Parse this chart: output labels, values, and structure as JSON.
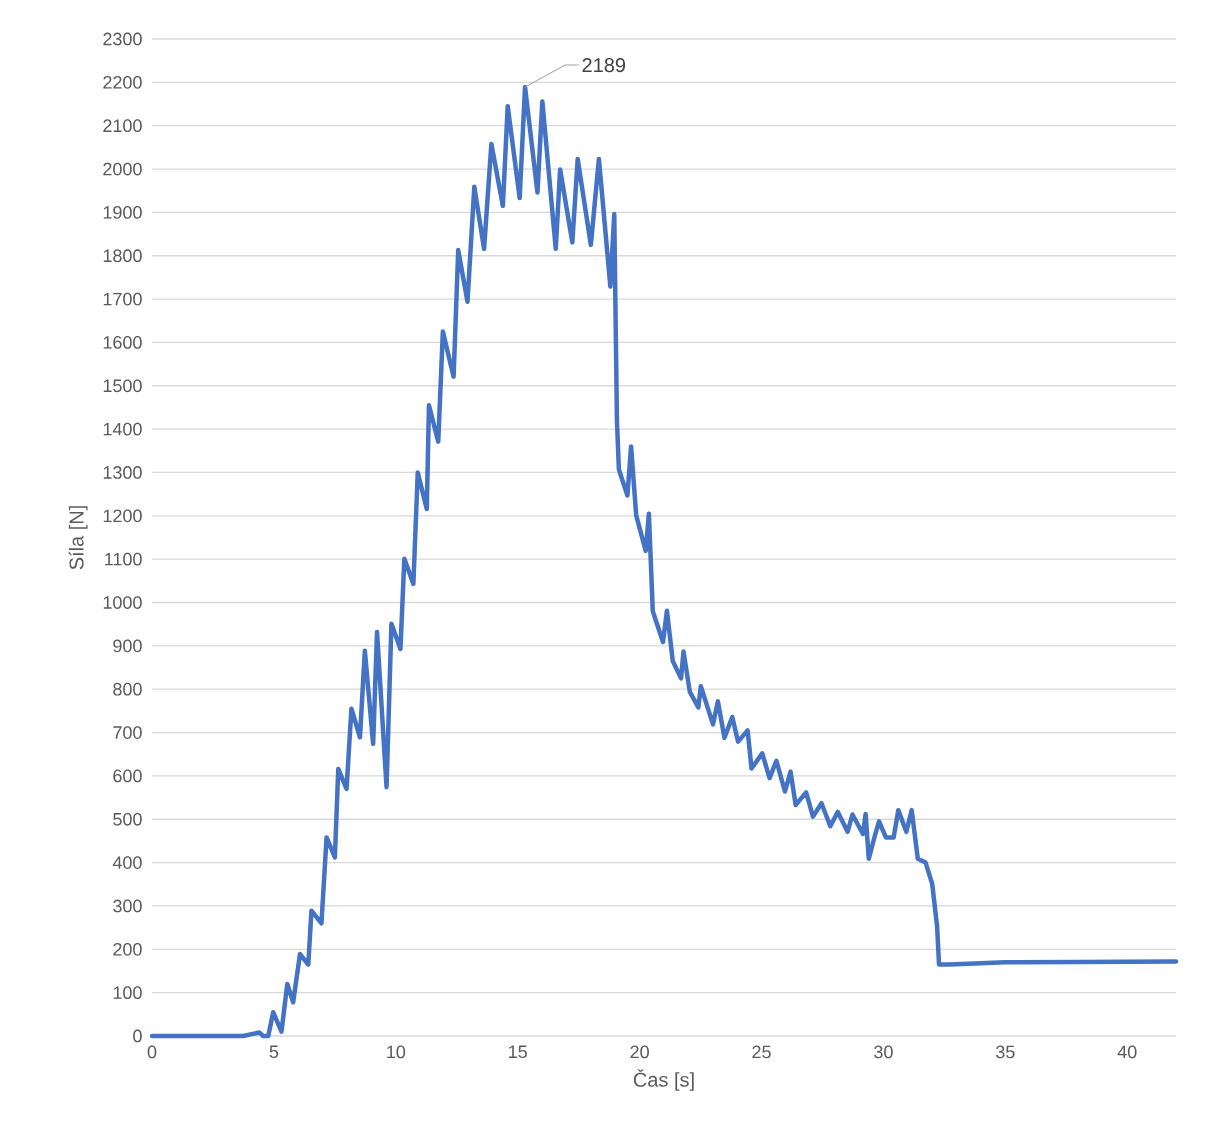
{
  "chart_data": {
    "type": "line",
    "xlabel": "Čas [s]",
    "ylabel": "Síla [N]",
    "color": "#4472c4",
    "grid": "y",
    "xlim": [
      0,
      42
    ],
    "ylim": [
      0,
      2300
    ],
    "xticks": [
      0,
      5,
      10,
      15,
      20,
      25,
      30,
      35,
      40
    ],
    "yticks": [
      0,
      100,
      200,
      300,
      400,
      500,
      600,
      700,
      800,
      900,
      1000,
      1100,
      1200,
      1300,
      1400,
      1500,
      1600,
      1700,
      1800,
      1900,
      2000,
      2100,
      2200,
      2300
    ],
    "annotations": [
      {
        "text": "2189",
        "x": 15.3,
        "y": 2189
      }
    ],
    "x": [
      0,
      2,
      3.74,
      4.4,
      4.56,
      4.77,
      4.97,
      5.31,
      5.55,
      5.79,
      6.07,
      6.41,
      6.54,
      6.95,
      7.16,
      7.5,
      7.64,
      7.98,
      8.18,
      8.53,
      8.73,
      9.07,
      9.23,
      9.62,
      9.82,
      10.19,
      10.35,
      10.72,
      10.9,
      11.27,
      11.36,
      11.74,
      11.93,
      12.37,
      12.56,
      12.94,
      13.22,
      13.62,
      13.92,
      14.39,
      14.59,
      15.08,
      15.3,
      15.81,
      16.01,
      16.56,
      16.74,
      17.24,
      17.46,
      18.0,
      18.33,
      18.8,
      18.96,
      19.07,
      19.15,
      19.5,
      19.65,
      19.86,
      20.25,
      20.38,
      20.54,
      20.96,
      21.12,
      21.36,
      21.7,
      21.8,
      22.06,
      22.41,
      22.51,
      23.01,
      23.21,
      23.48,
      23.8,
      24.04,
      24.43,
      24.59,
      25.03,
      25.33,
      25.61,
      25.96,
      26.19,
      26.4,
      26.83,
      27.11,
      27.46,
      27.82,
      28.13,
      28.53,
      28.73,
      29.16,
      29.27,
      29.4,
      29.63,
      29.82,
      30.1,
      30.42,
      30.61,
      30.94,
      31.16,
      31.41,
      31.73,
      32.0,
      32.2,
      32.28,
      32.71,
      35,
      38,
      42
    ],
    "values": [
      0,
      0,
      0,
      8,
      0,
      0,
      55,
      10,
      120,
      78,
      189,
      165,
      289,
      260,
      458,
      412,
      616,
      570,
      755,
      689,
      889,
      674,
      932,
      574,
      951,
      893,
      1101,
      1043,
      1300,
      1216,
      1455,
      1371,
      1625,
      1521,
      1813,
      1694,
      1959,
      1816,
      2058,
      1915,
      2145,
      1933,
      2189,
      1946,
      2156,
      1816,
      1999,
      1831,
      2023,
      1825,
      2023,
      1729,
      1896,
      1419,
      1307,
      1247,
      1360,
      1201,
      1119,
      1205,
      980,
      909,
      981,
      865,
      825,
      887,
      794,
      758,
      807,
      719,
      772,
      688,
      736,
      679,
      705,
      617,
      652,
      595,
      635,
      564,
      610,
      533,
      562,
      506,
      537,
      484,
      517,
      471,
      511,
      466,
      512,
      409,
      458,
      495,
      458,
      458,
      521,
      471,
      521,
      409,
      400,
      351,
      254,
      165,
      165,
      170,
      171,
      172
    ]
  }
}
